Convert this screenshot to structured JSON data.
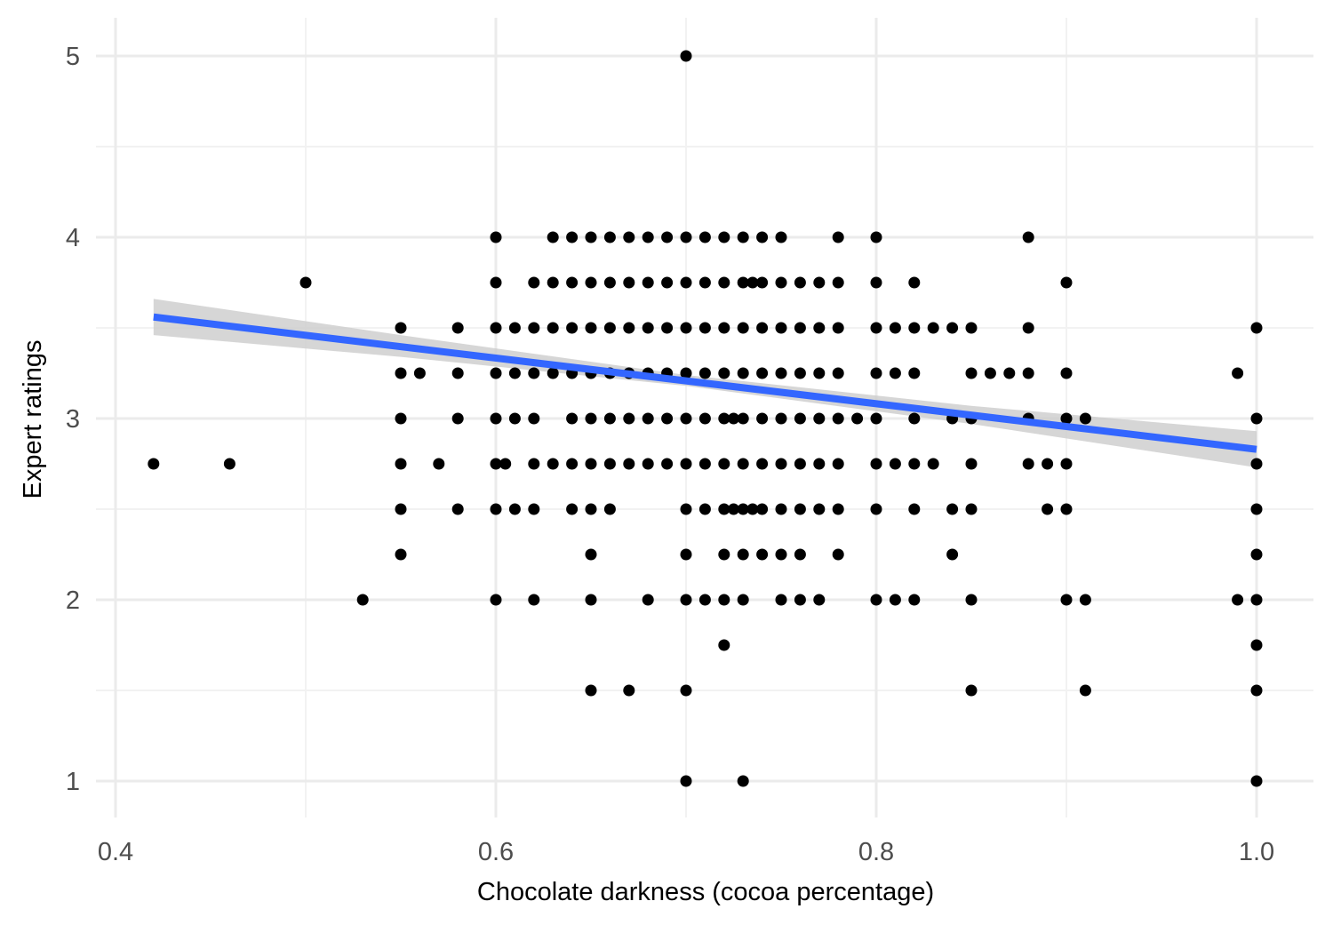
{
  "chart_data": {
    "type": "scatter",
    "title": "",
    "xlabel": "Chocolate darkness (cocoa percentage)",
    "ylabel": "Expert ratings",
    "xlim": [
      0.4,
      1.03
    ],
    "ylim": [
      0.8,
      5.2
    ],
    "x_ticks": [
      0.4,
      0.6,
      0.8,
      1.0
    ],
    "x_tick_labels": [
      "0.4",
      "0.6",
      "0.8",
      "1.0"
    ],
    "y_ticks": [
      1,
      2,
      3,
      4,
      5
    ],
    "y_tick_labels": [
      "1",
      "2",
      "3",
      "4",
      "5"
    ],
    "grid": true,
    "point_color": "#000000",
    "series": [
      {
        "values": [
          {
            "x": 0.42,
            "y": 2.75
          },
          {
            "x": 0.46,
            "y": 2.75
          },
          {
            "x": 0.5,
            "y": 3.75
          },
          {
            "x": 0.53,
            "y": 2.0
          },
          {
            "x": 0.55,
            "y": 3.5
          },
          {
            "x": 0.55,
            "y": 3.25
          },
          {
            "x": 0.55,
            "y": 3.0
          },
          {
            "x": 0.55,
            "y": 2.75
          },
          {
            "x": 0.55,
            "y": 2.5
          },
          {
            "x": 0.55,
            "y": 2.25
          },
          {
            "x": 0.56,
            "y": 3.25
          },
          {
            "x": 0.57,
            "y": 2.75
          },
          {
            "x": 0.58,
            "y": 3.5
          },
          {
            "x": 0.58,
            "y": 3.25
          },
          {
            "x": 0.58,
            "y": 3.0
          },
          {
            "x": 0.58,
            "y": 2.5
          },
          {
            "x": 0.6,
            "y": 4.0
          },
          {
            "x": 0.6,
            "y": 3.75
          },
          {
            "x": 0.6,
            "y": 3.5
          },
          {
            "x": 0.6,
            "y": 3.25
          },
          {
            "x": 0.6,
            "y": 3.0
          },
          {
            "x": 0.6,
            "y": 2.75
          },
          {
            "x": 0.6,
            "y": 2.5
          },
          {
            "x": 0.6,
            "y": 2.0
          },
          {
            "x": 0.605,
            "y": 2.75
          },
          {
            "x": 0.61,
            "y": 3.5
          },
          {
            "x": 0.61,
            "y": 3.25
          },
          {
            "x": 0.61,
            "y": 3.0
          },
          {
            "x": 0.61,
            "y": 2.5
          },
          {
            "x": 0.62,
            "y": 3.75
          },
          {
            "x": 0.62,
            "y": 3.5
          },
          {
            "x": 0.62,
            "y": 3.25
          },
          {
            "x": 0.62,
            "y": 3.0
          },
          {
            "x": 0.62,
            "y": 2.75
          },
          {
            "x": 0.62,
            "y": 2.5
          },
          {
            "x": 0.62,
            "y": 2.0
          },
          {
            "x": 0.63,
            "y": 4.0
          },
          {
            "x": 0.63,
            "y": 3.75
          },
          {
            "x": 0.63,
            "y": 3.5
          },
          {
            "x": 0.63,
            "y": 3.25
          },
          {
            "x": 0.63,
            "y": 2.75
          },
          {
            "x": 0.64,
            "y": 4.0
          },
          {
            "x": 0.64,
            "y": 3.75
          },
          {
            "x": 0.64,
            "y": 3.5
          },
          {
            "x": 0.64,
            "y": 3.25
          },
          {
            "x": 0.64,
            "y": 3.0
          },
          {
            "x": 0.64,
            "y": 2.75
          },
          {
            "x": 0.64,
            "y": 2.5
          },
          {
            "x": 0.65,
            "y": 4.0
          },
          {
            "x": 0.65,
            "y": 3.75
          },
          {
            "x": 0.65,
            "y": 3.5
          },
          {
            "x": 0.65,
            "y": 3.25
          },
          {
            "x": 0.65,
            "y": 3.0
          },
          {
            "x": 0.65,
            "y": 2.75
          },
          {
            "x": 0.65,
            "y": 2.5
          },
          {
            "x": 0.65,
            "y": 2.25
          },
          {
            "x": 0.65,
            "y": 2.0
          },
          {
            "x": 0.65,
            "y": 1.5
          },
          {
            "x": 0.66,
            "y": 4.0
          },
          {
            "x": 0.66,
            "y": 3.75
          },
          {
            "x": 0.66,
            "y": 3.5
          },
          {
            "x": 0.66,
            "y": 3.25
          },
          {
            "x": 0.66,
            "y": 3.0
          },
          {
            "x": 0.66,
            "y": 2.75
          },
          {
            "x": 0.66,
            "y": 2.5
          },
          {
            "x": 0.67,
            "y": 4.0
          },
          {
            "x": 0.67,
            "y": 3.75
          },
          {
            "x": 0.67,
            "y": 3.5
          },
          {
            "x": 0.67,
            "y": 3.25
          },
          {
            "x": 0.67,
            "y": 3.0
          },
          {
            "x": 0.67,
            "y": 2.75
          },
          {
            "x": 0.67,
            "y": 1.5
          },
          {
            "x": 0.68,
            "y": 4.0
          },
          {
            "x": 0.68,
            "y": 3.75
          },
          {
            "x": 0.68,
            "y": 3.5
          },
          {
            "x": 0.68,
            "y": 3.25
          },
          {
            "x": 0.68,
            "y": 3.0
          },
          {
            "x": 0.68,
            "y": 2.75
          },
          {
            "x": 0.68,
            "y": 2.0
          },
          {
            "x": 0.69,
            "y": 4.0
          },
          {
            "x": 0.69,
            "y": 3.75
          },
          {
            "x": 0.69,
            "y": 3.5
          },
          {
            "x": 0.69,
            "y": 3.25
          },
          {
            "x": 0.69,
            "y": 3.0
          },
          {
            "x": 0.69,
            "y": 2.75
          },
          {
            "x": 0.7,
            "y": 5.0
          },
          {
            "x": 0.7,
            "y": 4.0
          },
          {
            "x": 0.7,
            "y": 3.75
          },
          {
            "x": 0.7,
            "y": 3.5
          },
          {
            "x": 0.7,
            "y": 3.25
          },
          {
            "x": 0.7,
            "y": 3.0
          },
          {
            "x": 0.7,
            "y": 2.75
          },
          {
            "x": 0.7,
            "y": 2.5
          },
          {
            "x": 0.7,
            "y": 2.25
          },
          {
            "x": 0.7,
            "y": 2.0
          },
          {
            "x": 0.7,
            "y": 1.5
          },
          {
            "x": 0.7,
            "y": 1.0
          },
          {
            "x": 0.71,
            "y": 4.0
          },
          {
            "x": 0.71,
            "y": 3.75
          },
          {
            "x": 0.71,
            "y": 3.5
          },
          {
            "x": 0.71,
            "y": 3.25
          },
          {
            "x": 0.71,
            "y": 3.0
          },
          {
            "x": 0.71,
            "y": 2.75
          },
          {
            "x": 0.71,
            "y": 2.5
          },
          {
            "x": 0.71,
            "y": 2.0
          },
          {
            "x": 0.72,
            "y": 4.0
          },
          {
            "x": 0.72,
            "y": 3.75
          },
          {
            "x": 0.72,
            "y": 3.5
          },
          {
            "x": 0.72,
            "y": 3.25
          },
          {
            "x": 0.72,
            "y": 3.0
          },
          {
            "x": 0.72,
            "y": 2.75
          },
          {
            "x": 0.72,
            "y": 2.5
          },
          {
            "x": 0.72,
            "y": 2.25
          },
          {
            "x": 0.72,
            "y": 2.0
          },
          {
            "x": 0.72,
            "y": 1.75
          },
          {
            "x": 0.725,
            "y": 3.0
          },
          {
            "x": 0.725,
            "y": 2.5
          },
          {
            "x": 0.73,
            "y": 4.0
          },
          {
            "x": 0.73,
            "y": 3.75
          },
          {
            "x": 0.73,
            "y": 3.5
          },
          {
            "x": 0.73,
            "y": 3.25
          },
          {
            "x": 0.73,
            "y": 3.0
          },
          {
            "x": 0.73,
            "y": 2.75
          },
          {
            "x": 0.73,
            "y": 2.5
          },
          {
            "x": 0.73,
            "y": 2.25
          },
          {
            "x": 0.73,
            "y": 2.0
          },
          {
            "x": 0.73,
            "y": 1.0
          },
          {
            "x": 0.735,
            "y": 3.75
          },
          {
            "x": 0.735,
            "y": 2.5
          },
          {
            "x": 0.74,
            "y": 4.0
          },
          {
            "x": 0.74,
            "y": 3.75
          },
          {
            "x": 0.74,
            "y": 3.5
          },
          {
            "x": 0.74,
            "y": 3.25
          },
          {
            "x": 0.74,
            "y": 3.0
          },
          {
            "x": 0.74,
            "y": 2.75
          },
          {
            "x": 0.74,
            "y": 2.5
          },
          {
            "x": 0.74,
            "y": 2.25
          },
          {
            "x": 0.75,
            "y": 4.0
          },
          {
            "x": 0.75,
            "y": 3.75
          },
          {
            "x": 0.75,
            "y": 3.5
          },
          {
            "x": 0.75,
            "y": 3.25
          },
          {
            "x": 0.75,
            "y": 3.0
          },
          {
            "x": 0.75,
            "y": 2.75
          },
          {
            "x": 0.75,
            "y": 2.5
          },
          {
            "x": 0.75,
            "y": 2.25
          },
          {
            "x": 0.75,
            "y": 2.0
          },
          {
            "x": 0.76,
            "y": 3.75
          },
          {
            "x": 0.76,
            "y": 3.5
          },
          {
            "x": 0.76,
            "y": 3.25
          },
          {
            "x": 0.76,
            "y": 3.0
          },
          {
            "x": 0.76,
            "y": 2.75
          },
          {
            "x": 0.76,
            "y": 2.5
          },
          {
            "x": 0.76,
            "y": 2.25
          },
          {
            "x": 0.76,
            "y": 2.0
          },
          {
            "x": 0.77,
            "y": 3.75
          },
          {
            "x": 0.77,
            "y": 3.5
          },
          {
            "x": 0.77,
            "y": 3.25
          },
          {
            "x": 0.77,
            "y": 3.0
          },
          {
            "x": 0.77,
            "y": 2.75
          },
          {
            "x": 0.77,
            "y": 2.5
          },
          {
            "x": 0.77,
            "y": 2.0
          },
          {
            "x": 0.78,
            "y": 4.0
          },
          {
            "x": 0.78,
            "y": 3.75
          },
          {
            "x": 0.78,
            "y": 3.5
          },
          {
            "x": 0.78,
            "y": 3.25
          },
          {
            "x": 0.78,
            "y": 3.0
          },
          {
            "x": 0.78,
            "y": 2.75
          },
          {
            "x": 0.78,
            "y": 2.5
          },
          {
            "x": 0.78,
            "y": 2.25
          },
          {
            "x": 0.79,
            "y": 3.0
          },
          {
            "x": 0.8,
            "y": 4.0
          },
          {
            "x": 0.8,
            "y": 3.75
          },
          {
            "x": 0.8,
            "y": 3.5
          },
          {
            "x": 0.8,
            "y": 3.25
          },
          {
            "x": 0.8,
            "y": 3.0
          },
          {
            "x": 0.8,
            "y": 2.75
          },
          {
            "x": 0.8,
            "y": 2.5
          },
          {
            "x": 0.8,
            "y": 2.0
          },
          {
            "x": 0.81,
            "y": 3.5
          },
          {
            "x": 0.81,
            "y": 3.25
          },
          {
            "x": 0.81,
            "y": 2.75
          },
          {
            "x": 0.81,
            "y": 2.0
          },
          {
            "x": 0.82,
            "y": 3.75
          },
          {
            "x": 0.82,
            "y": 3.5
          },
          {
            "x": 0.82,
            "y": 3.25
          },
          {
            "x": 0.82,
            "y": 3.0
          },
          {
            "x": 0.82,
            "y": 2.75
          },
          {
            "x": 0.82,
            "y": 2.5
          },
          {
            "x": 0.82,
            "y": 2.0
          },
          {
            "x": 0.83,
            "y": 3.5
          },
          {
            "x": 0.83,
            "y": 2.75
          },
          {
            "x": 0.84,
            "y": 3.5
          },
          {
            "x": 0.84,
            "y": 3.0
          },
          {
            "x": 0.84,
            "y": 2.5
          },
          {
            "x": 0.84,
            "y": 2.25
          },
          {
            "x": 0.85,
            "y": 3.5
          },
          {
            "x": 0.85,
            "y": 3.25
          },
          {
            "x": 0.85,
            "y": 3.0
          },
          {
            "x": 0.85,
            "y": 2.75
          },
          {
            "x": 0.85,
            "y": 2.5
          },
          {
            "x": 0.85,
            "y": 2.0
          },
          {
            "x": 0.85,
            "y": 1.5
          },
          {
            "x": 0.86,
            "y": 3.25
          },
          {
            "x": 0.87,
            "y": 3.25
          },
          {
            "x": 0.88,
            "y": 4.0
          },
          {
            "x": 0.88,
            "y": 3.5
          },
          {
            "x": 0.88,
            "y": 3.25
          },
          {
            "x": 0.88,
            "y": 3.0
          },
          {
            "x": 0.88,
            "y": 2.75
          },
          {
            "x": 0.89,
            "y": 2.75
          },
          {
            "x": 0.89,
            "y": 2.5
          },
          {
            "x": 0.9,
            "y": 3.75
          },
          {
            "x": 0.9,
            "y": 3.25
          },
          {
            "x": 0.9,
            "y": 3.0
          },
          {
            "x": 0.9,
            "y": 2.75
          },
          {
            "x": 0.9,
            "y": 2.5
          },
          {
            "x": 0.9,
            "y": 2.0
          },
          {
            "x": 0.91,
            "y": 3.0
          },
          {
            "x": 0.91,
            "y": 2.0
          },
          {
            "x": 0.91,
            "y": 1.5
          },
          {
            "x": 0.99,
            "y": 3.25
          },
          {
            "x": 0.99,
            "y": 2.0
          },
          {
            "x": 1.0,
            "y": 3.5
          },
          {
            "x": 1.0,
            "y": 3.0
          },
          {
            "x": 1.0,
            "y": 2.75
          },
          {
            "x": 1.0,
            "y": 2.5
          },
          {
            "x": 1.0,
            "y": 2.25
          },
          {
            "x": 1.0,
            "y": 2.0
          },
          {
            "x": 1.0,
            "y": 1.75
          },
          {
            "x": 1.0,
            "y": 1.5
          },
          {
            "x": 1.0,
            "y": 1.0
          }
        ]
      }
    ],
    "trend_line": {
      "method": "linear",
      "color": "#3366ff",
      "band_color": "#cccccc",
      "points": [
        {
          "x": 0.42,
          "y": 3.56,
          "lo": 3.46,
          "hi": 3.66
        },
        {
          "x": 0.55,
          "y": 3.4,
          "lo": 3.34,
          "hi": 3.46
        },
        {
          "x": 0.7,
          "y": 3.21,
          "lo": 3.18,
          "hi": 3.24
        },
        {
          "x": 0.85,
          "y": 3.02,
          "lo": 2.97,
          "hi": 3.07
        },
        {
          "x": 1.0,
          "y": 2.83,
          "lo": 2.73,
          "hi": 2.93
        }
      ]
    }
  }
}
